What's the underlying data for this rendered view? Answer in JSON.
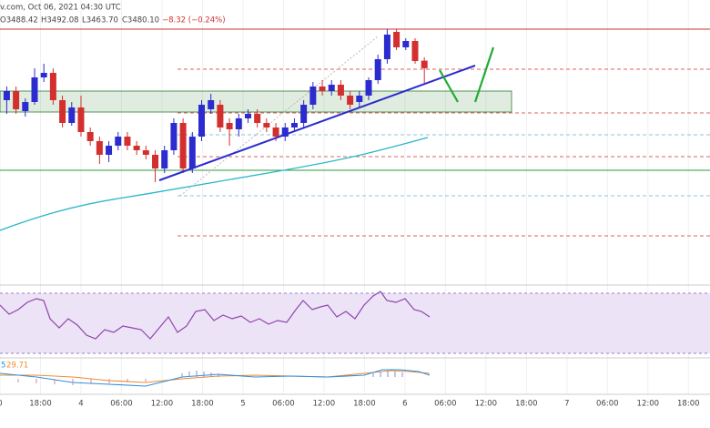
{
  "chart_data": {
    "type": "candlestick",
    "header": [
      "v.com, Oct 06, 2021 04:30 UTC",
      "O3488.42",
      "H3492.08",
      "L3463.70",
      "C3480.10",
      "−8.32 (−0.24%)"
    ],
    "indicator_labels": [
      "5",
      "29.71"
    ],
    "up_color": "#2b2bcf",
    "down_color": "#d32f2f",
    "xlim": [
      12,
      117.2
    ],
    "ylim": [
      3256,
      3536
    ],
    "xticks": [
      {
        "value": 12,
        "label": "0"
      },
      {
        "value": 18,
        "label": "18:00"
      },
      {
        "value": 24,
        "label": "4"
      },
      {
        "value": 30,
        "label": "06:00"
      },
      {
        "value": 36,
        "label": "12:00"
      },
      {
        "value": 42,
        "label": "18:00"
      },
      {
        "value": 48,
        "label": "5"
      },
      {
        "value": 54,
        "label": "06:00"
      },
      {
        "value": 60,
        "label": "12:00"
      },
      {
        "value": 66,
        "label": "18:00"
      },
      {
        "value": 72,
        "label": "6"
      },
      {
        "value": 78,
        "label": "06:00"
      },
      {
        "value": 84,
        "label": "12:00"
      },
      {
        "value": 90,
        "label": "18:00"
      },
      {
        "value": 96,
        "label": "7"
      },
      {
        "value": 102,
        "label": "06:00"
      },
      {
        "value": 108,
        "label": "12:00"
      },
      {
        "value": 114,
        "label": "18:00"
      }
    ],
    "grid": true,
    "x": [
      13,
      14.375,
      15.75,
      17.125,
      18.5,
      19.875,
      21.25,
      22.625,
      24,
      25.375,
      26.75,
      28.125,
      29.5,
      30.875,
      32.25,
      33.625,
      35,
      36.375,
      37.75,
      39.125,
      40.5,
      41.875,
      43.25,
      44.625,
      46,
      47.375,
      48.75,
      50.125,
      51.5,
      52.875,
      54.25,
      55.625,
      57,
      58.375,
      59.75,
      61.125,
      62.5,
      63.875,
      65.25,
      66.625,
      68,
      69.375,
      70.75,
      72.125,
      73.5,
      74.875
    ],
    "open": [
      3445,
      3455,
      3433,
      3443,
      3470,
      3475,
      3445,
      3420,
      3437,
      3410,
      3400,
      3385,
      3395,
      3405,
      3395,
      3390,
      3385,
      3370,
      3390,
      3420,
      3370,
      3405,
      3435,
      3440,
      3420,
      3413,
      3425,
      3430,
      3420,
      3415,
      3405,
      3415,
      3420,
      3440,
      3460,
      3455,
      3462,
      3450,
      3443,
      3450,
      3467,
      3490,
      3520,
      3503,
      3510,
      3488.42
    ],
    "high": [
      3460,
      3460,
      3447,
      3480,
      3485,
      3480,
      3450,
      3443,
      3450,
      3415,
      3405,
      3400,
      3410,
      3410,
      3400,
      3395,
      3390,
      3395,
      3425,
      3425,
      3410,
      3445,
      3452,
      3445,
      3425,
      3430,
      3435,
      3435,
      3425,
      3420,
      3420,
      3425,
      3445,
      3465,
      3467,
      3467,
      3467,
      3455,
      3455,
      3470,
      3495,
      3523,
      3523,
      3513,
      3513,
      3492.08
    ],
    "low": [
      3430,
      3430,
      3427,
      3440,
      3465,
      3440,
      3415,
      3417,
      3405,
      3395,
      3375,
      3377,
      3390,
      3390,
      3385,
      3380,
      3355,
      3365,
      3385,
      3365,
      3365,
      3400,
      3430,
      3410,
      3395,
      3405,
      3420,
      3415,
      3410,
      3400,
      3400,
      3410,
      3415,
      3435,
      3450,
      3450,
      3445,
      3435,
      3437,
      3445,
      3463,
      3485,
      3500,
      3500,
      3485,
      3463.7
    ],
    "close": [
      3455,
      3435,
      3443,
      3470,
      3475,
      3445,
      3420,
      3437,
      3410,
      3400,
      3385,
      3395,
      3405,
      3395,
      3390,
      3385,
      3370,
      3390,
      3420,
      3370,
      3405,
      3440,
      3445,
      3415,
      3413,
      3425,
      3430,
      3420,
      3415,
      3405,
      3415,
      3420,
      3440,
      3460,
      3455,
      3462,
      3450,
      3440,
      3450,
      3467,
      3490,
      3517,
      3503,
      3510,
      3488,
      3480.1
    ],
    "levels": [
      {
        "value": 3523,
        "color": "#d32f2f",
        "style": "solid"
      },
      {
        "value": 3479,
        "color": "#d32f2f",
        "style": "dashed"
      },
      {
        "value": 3431,
        "color": "#d32f2f",
        "style": "dashed"
      },
      {
        "value": 3383,
        "color": "#d32f2f",
        "style": "dashed"
      },
      {
        "value": 3296,
        "color": "#d32f2f",
        "style": "dashed"
      },
      {
        "value": 3407,
        "color": "#5fb8c2",
        "style": "dashed"
      },
      {
        "value": 3340,
        "color": "#5fb8c2",
        "style": "dashed"
      },
      {
        "value": 3368,
        "color": "#2e9b3a",
        "style": "solid"
      }
    ],
    "zone": {
      "from": 3432,
      "to": 3455,
      "x_end": 87.8,
      "color": "#2e7d32"
    }
  }
}
